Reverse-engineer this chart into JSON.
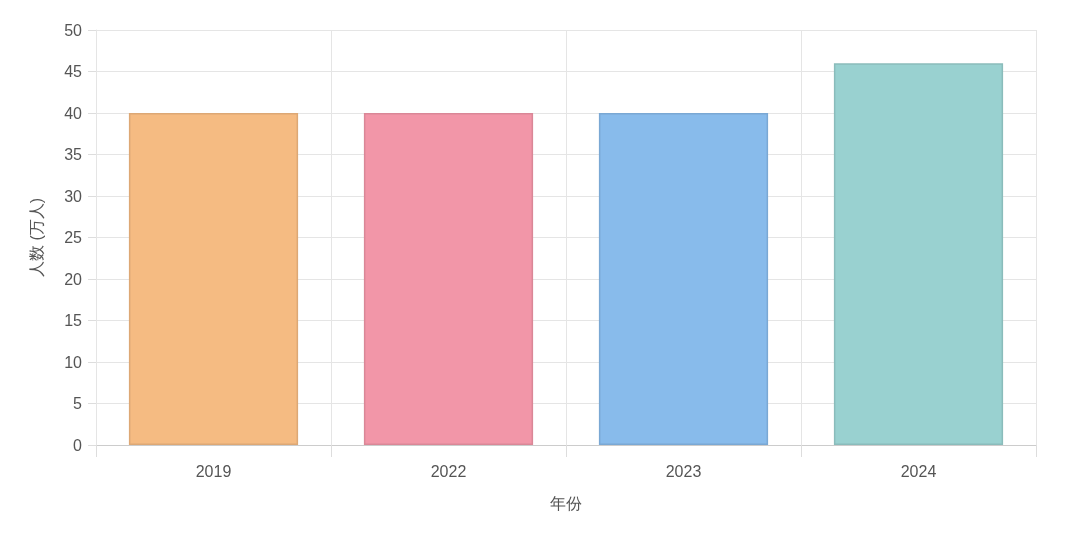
{
  "chart_data": {
    "type": "bar",
    "xlabel": "年份",
    "ylabel": "人数 (万人)",
    "categories": [
      "2019",
      "2022",
      "2023",
      "2024"
    ],
    "values": [
      40,
      40,
      40,
      46
    ],
    "colors": [
      "#f5bb82",
      "#f296a8",
      "#88bbeb",
      "#99d1d0"
    ],
    "ylim": [
      0,
      50
    ],
    "yticks": [
      0,
      5,
      10,
      15,
      20,
      25,
      30,
      35,
      40,
      45,
      50
    ],
    "grid": true
  }
}
